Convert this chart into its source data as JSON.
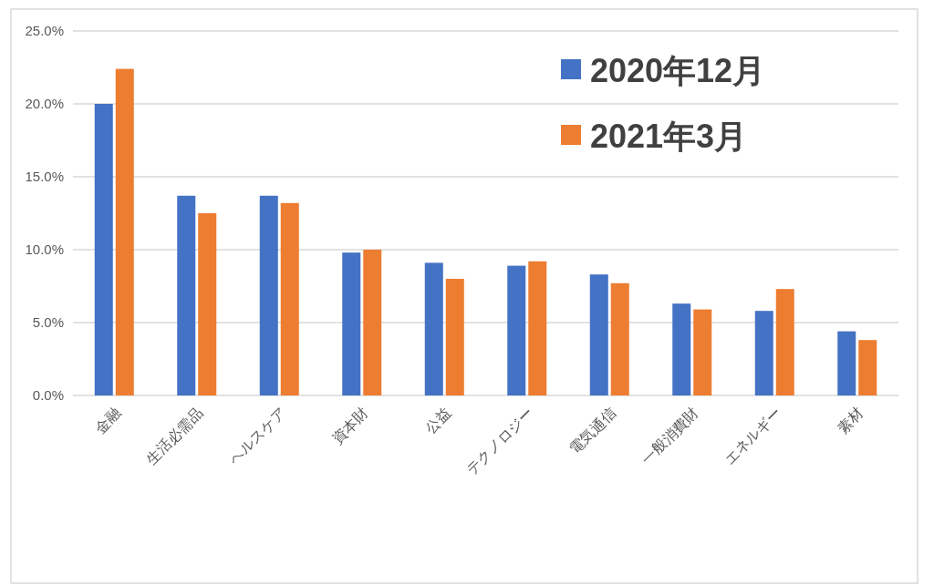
{
  "chart_data": {
    "type": "bar",
    "categories": [
      "金融",
      "生活必需品",
      "ヘルスケア",
      "資本財",
      "公益",
      "テクノロジー",
      "電気通信",
      "一般消費財",
      "エネルギー",
      "素材"
    ],
    "series": [
      {
        "name": "2020年12月",
        "color": "#4472c4",
        "values": [
          20.0,
          13.7,
          13.7,
          9.8,
          9.1,
          8.9,
          8.3,
          6.3,
          5.8,
          4.4
        ]
      },
      {
        "name": "2021年3月",
        "color": "#ed7d31",
        "values": [
          22.4,
          12.5,
          13.2,
          10.0,
          8.0,
          9.2,
          7.7,
          5.9,
          7.3,
          3.8
        ]
      }
    ],
    "ylim": [
      0,
      25
    ],
    "yticks": [
      {
        "value": 0,
        "label": "0.0%"
      },
      {
        "value": 5,
        "label": "5.0%"
      },
      {
        "value": 10,
        "label": "10.0%"
      },
      {
        "value": 15,
        "label": "15.0%"
      },
      {
        "value": 20,
        "label": "20.0%"
      },
      {
        "value": 25,
        "label": "25.0%"
      }
    ],
    "grid": "y",
    "legend": "top right"
  }
}
